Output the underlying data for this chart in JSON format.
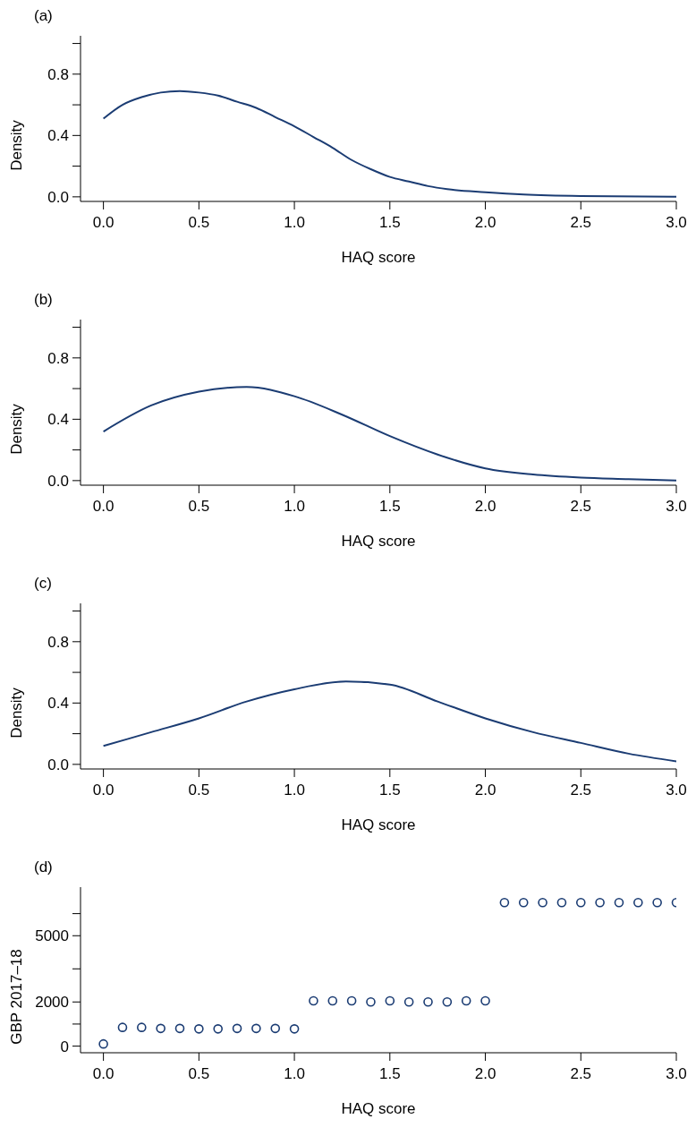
{
  "chart_data": [
    {
      "type": "line",
      "title": "(a)",
      "xlabel": "HAQ score",
      "ylabel": "Density",
      "x": [
        0,
        0.1,
        0.2,
        0.3,
        0.4,
        0.5,
        0.6,
        0.7,
        0.8,
        0.9,
        1.0,
        1.1,
        1.2,
        1.3,
        1.4,
        1.5,
        1.6,
        1.7,
        1.8,
        2.0,
        2.2,
        2.5,
        3.0
      ],
      "series": [
        {
          "color": "#1b3c73",
          "values": [
            0.51,
            0.6,
            0.65,
            0.68,
            0.69,
            0.68,
            0.66,
            0.62,
            0.58,
            0.52,
            0.46,
            0.39,
            0.32,
            0.24,
            0.18,
            0.13,
            0.1,
            0.07,
            0.05,
            0.03,
            0.015,
            0.005,
            0
          ]
        }
      ],
      "xlim": [
        -0.12,
        3.0
      ],
      "xticks": [
        {
          "value": 0,
          "label": "0.0"
        },
        {
          "value": 0.5,
          "label": "0.5"
        },
        {
          "value": 1,
          "label": "1.0"
        },
        {
          "value": 1.5,
          "label": "1.5"
        },
        {
          "value": 2,
          "label": "2.0"
        },
        {
          "value": 2.5,
          "label": "2.5"
        },
        {
          "value": 3,
          "label": "3.0"
        }
      ],
      "ylim": [
        -0.03,
        1.05
      ],
      "yticks": [
        {
          "value": 0,
          "label": "0.0"
        },
        {
          "value": 0.2,
          "label": null
        },
        {
          "value": 0.4,
          "label": "0.4"
        },
        {
          "value": 0.6,
          "label": null
        },
        {
          "value": 0.8,
          "label": "0.8"
        },
        {
          "value": 1.0,
          "label": null
        }
      ]
    },
    {
      "type": "line",
      "title": "(b)",
      "xlabel": "HAQ score",
      "ylabel": "Density",
      "x": [
        0,
        0.25,
        0.5,
        0.75,
        1.0,
        1.25,
        1.5,
        1.75,
        2.0,
        2.25,
        2.5,
        2.75,
        3.0
      ],
      "series": [
        {
          "color": "#1b3c73",
          "values": [
            0.32,
            0.49,
            0.58,
            0.61,
            0.55,
            0.43,
            0.29,
            0.17,
            0.08,
            0.04,
            0.02,
            0.01,
            0
          ]
        }
      ],
      "xlim": [
        -0.12,
        3.0
      ],
      "xticks": [
        {
          "value": 0,
          "label": "0.0"
        },
        {
          "value": 0.5,
          "label": "0.5"
        },
        {
          "value": 1,
          "label": "1.0"
        },
        {
          "value": 1.5,
          "label": "1.5"
        },
        {
          "value": 2,
          "label": "2.0"
        },
        {
          "value": 2.5,
          "label": "2.5"
        },
        {
          "value": 3,
          "label": "3.0"
        }
      ],
      "ylim": [
        -0.03,
        1.05
      ],
      "yticks": [
        {
          "value": 0,
          "label": "0.0"
        },
        {
          "value": 0.2,
          "label": null
        },
        {
          "value": 0.4,
          "label": "0.4"
        },
        {
          "value": 0.6,
          "label": null
        },
        {
          "value": 0.8,
          "label": "0.8"
        },
        {
          "value": 1.0,
          "label": null
        }
      ]
    },
    {
      "type": "line",
      "title": "(c)",
      "xlabel": "HAQ score",
      "ylabel": "Density",
      "x": [
        0,
        0.25,
        0.5,
        0.75,
        1.0,
        1.27,
        1.5,
        1.75,
        2.0,
        2.25,
        2.5,
        2.75,
        3.0
      ],
      "series": [
        {
          "color": "#1b3c73",
          "values": [
            0.12,
            0.21,
            0.3,
            0.41,
            0.49,
            0.54,
            0.52,
            0.41,
            0.3,
            0.21,
            0.14,
            0.07,
            0.02
          ]
        }
      ],
      "xlim": [
        -0.12,
        3.0
      ],
      "xticks": [
        {
          "value": 0,
          "label": "0.0"
        },
        {
          "value": 0.5,
          "label": "0.5"
        },
        {
          "value": 1,
          "label": "1.0"
        },
        {
          "value": 1.5,
          "label": "1.5"
        },
        {
          "value": 2,
          "label": "2.0"
        },
        {
          "value": 2.5,
          "label": "2.5"
        },
        {
          "value": 3,
          "label": "3.0"
        }
      ],
      "ylim": [
        -0.03,
        1.05
      ],
      "yticks": [
        {
          "value": 0,
          "label": "0.0"
        },
        {
          "value": 0.2,
          "label": null
        },
        {
          "value": 0.4,
          "label": "0.4"
        },
        {
          "value": 0.6,
          "label": null
        },
        {
          "value": 0.8,
          "label": "0.8"
        },
        {
          "value": 1.0,
          "label": null
        }
      ]
    },
    {
      "type": "scatter",
      "title": "(d)",
      "xlabel": "HAQ score",
      "ylabel": "GBP 2017–18",
      "marker": "circle",
      "x": [
        0,
        0.1,
        0.2,
        0.3,
        0.4,
        0.5,
        0.6,
        0.7,
        0.8,
        0.9,
        1.0,
        1.1,
        1.2,
        1.3,
        1.4,
        1.5,
        1.6,
        1.7,
        1.8,
        1.9,
        2.0,
        2.1,
        2.2,
        2.3,
        2.4,
        2.5,
        2.6,
        2.7,
        2.8,
        2.9,
        3.0
      ],
      "series": [
        {
          "color": "#1b3c73",
          "values": [
            100,
            850,
            850,
            800,
            800,
            780,
            780,
            800,
            800,
            800,
            780,
            2050,
            2050,
            2050,
            2000,
            2050,
            2000,
            2000,
            2000,
            2050,
            2050,
            6500,
            6500,
            6500,
            6500,
            6500,
            6500,
            6500,
            6500,
            6500,
            6500
          ]
        }
      ],
      "xlim": [
        -0.12,
        3.0
      ],
      "xticks": [
        {
          "value": 0,
          "label": "0.0"
        },
        {
          "value": 0.5,
          "label": "0.5"
        },
        {
          "value": 1,
          "label": "1.0"
        },
        {
          "value": 1.5,
          "label": "1.5"
        },
        {
          "value": 2,
          "label": "2.0"
        },
        {
          "value": 2.5,
          "label": "2.5"
        },
        {
          "value": 3,
          "label": "3.0"
        }
      ],
      "ylim": [
        -300,
        7200
      ],
      "yticks": [
        0,
        {
          "value": 1000,
          "label": null
        },
        2000,
        {
          "value": 3500,
          "label": null
        },
        5000,
        {
          "value": 6000,
          "label": null
        }
      ]
    }
  ]
}
